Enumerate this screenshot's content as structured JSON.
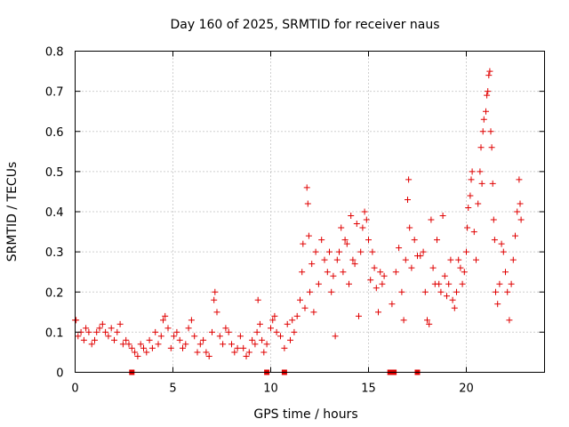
{
  "chart_data": {
    "type": "scatter",
    "title": "Day 160 of 2025, SRMTID for receiver naus",
    "xlabel": "GPS time / hours",
    "ylabel": "SRMTID / TECUs",
    "xlim": [
      0,
      24
    ],
    "ylim": [
      0,
      0.8
    ],
    "grid": true,
    "legend": "none",
    "marker": "plus",
    "color": "#e00000",
    "x_ticks": [
      0,
      5,
      10,
      15,
      20
    ],
    "x_tick_labels": [
      "0",
      "5",
      "10",
      "15",
      "20"
    ],
    "y_ticks": [
      0,
      0.1,
      0.2,
      0.3,
      0.4,
      0.5,
      0.6,
      0.7,
      0.8
    ],
    "y_tick_labels": [
      "0",
      "0.1",
      "0.2",
      "0.3",
      "0.4",
      "0.5",
      "0.6",
      "0.7",
      "0.8"
    ],
    "series": [
      {
        "name": "SRMTID",
        "points": [
          [
            0.0,
            0.13
          ],
          [
            0.05,
            0.13
          ],
          [
            0.15,
            0.09
          ],
          [
            0.3,
            0.1
          ],
          [
            0.45,
            0.08
          ],
          [
            0.55,
            0.11
          ],
          [
            0.7,
            0.1
          ],
          [
            0.85,
            0.07
          ],
          [
            1.0,
            0.08
          ],
          [
            1.1,
            0.1
          ],
          [
            1.25,
            0.11
          ],
          [
            1.4,
            0.12
          ],
          [
            1.55,
            0.1
          ],
          [
            1.7,
            0.09
          ],
          [
            1.85,
            0.11
          ],
          [
            2.0,
            0.08
          ],
          [
            2.15,
            0.1
          ],
          [
            2.3,
            0.12
          ],
          [
            2.45,
            0.07
          ],
          [
            2.6,
            0.08
          ],
          [
            2.75,
            0.07
          ],
          [
            2.9,
            0.06
          ],
          [
            3.05,
            0.05
          ],
          [
            3.2,
            0.04
          ],
          [
            3.35,
            0.07
          ],
          [
            3.5,
            0.06
          ],
          [
            3.65,
            0.05
          ],
          [
            3.8,
            0.08
          ],
          [
            3.95,
            0.06
          ],
          [
            4.1,
            0.1
          ],
          [
            4.25,
            0.07
          ],
          [
            4.4,
            0.09
          ],
          [
            4.5,
            0.13
          ],
          [
            4.6,
            0.14
          ],
          [
            4.75,
            0.11
          ],
          [
            4.9,
            0.06
          ],
          [
            5.05,
            0.09
          ],
          [
            5.2,
            0.1
          ],
          [
            5.35,
            0.08
          ],
          [
            5.5,
            0.06
          ],
          [
            5.65,
            0.07
          ],
          [
            5.8,
            0.11
          ],
          [
            5.95,
            0.13
          ],
          [
            6.1,
            0.09
          ],
          [
            6.25,
            0.05
          ],
          [
            6.4,
            0.07
          ],
          [
            6.55,
            0.08
          ],
          [
            6.7,
            0.05
          ],
          [
            6.85,
            0.04
          ],
          [
            7.0,
            0.1
          ],
          [
            7.1,
            0.18
          ],
          [
            7.15,
            0.2
          ],
          [
            7.25,
            0.15
          ],
          [
            7.4,
            0.09
          ],
          [
            7.55,
            0.07
          ],
          [
            7.7,
            0.11
          ],
          [
            7.85,
            0.1
          ],
          [
            8.0,
            0.07
          ],
          [
            8.15,
            0.05
          ],
          [
            8.3,
            0.06
          ],
          [
            8.45,
            0.09
          ],
          [
            8.6,
            0.06
          ],
          [
            8.75,
            0.04
          ],
          [
            8.9,
            0.05
          ],
          [
            9.05,
            0.08
          ],
          [
            9.2,
            0.07
          ],
          [
            9.3,
            0.1
          ],
          [
            9.35,
            0.18
          ],
          [
            9.45,
            0.12
          ],
          [
            9.55,
            0.08
          ],
          [
            9.65,
            0.05
          ],
          [
            9.8,
            0.07
          ],
          [
            10.0,
            0.11
          ],
          [
            10.1,
            0.13
          ],
          [
            10.2,
            0.14
          ],
          [
            10.3,
            0.1
          ],
          [
            10.5,
            0.09
          ],
          [
            10.7,
            0.06
          ],
          [
            10.85,
            0.12
          ],
          [
            11.0,
            0.08
          ],
          [
            11.1,
            0.13
          ],
          [
            11.2,
            0.1
          ],
          [
            11.35,
            0.14
          ],
          [
            11.5,
            0.18
          ],
          [
            11.6,
            0.25
          ],
          [
            11.65,
            0.32
          ],
          [
            11.75,
            0.16
          ],
          [
            11.85,
            0.46
          ],
          [
            11.9,
            0.42
          ],
          [
            11.95,
            0.34
          ],
          [
            12.0,
            0.2
          ],
          [
            12.1,
            0.27
          ],
          [
            12.2,
            0.15
          ],
          [
            12.3,
            0.3
          ],
          [
            12.45,
            0.22
          ],
          [
            12.6,
            0.33
          ],
          [
            12.75,
            0.28
          ],
          [
            12.9,
            0.25
          ],
          [
            13.0,
            0.3
          ],
          [
            13.1,
            0.2
          ],
          [
            13.2,
            0.24
          ],
          [
            13.3,
            0.09
          ],
          [
            13.4,
            0.28
          ],
          [
            13.5,
            0.3
          ],
          [
            13.6,
            0.36
          ],
          [
            13.7,
            0.25
          ],
          [
            13.8,
            0.33
          ],
          [
            13.9,
            0.32
          ],
          [
            14.0,
            0.22
          ],
          [
            14.1,
            0.39
          ],
          [
            14.2,
            0.28
          ],
          [
            14.3,
            0.27
          ],
          [
            14.4,
            0.37
          ],
          [
            14.5,
            0.14
          ],
          [
            14.6,
            0.3
          ],
          [
            14.7,
            0.36
          ],
          [
            14.8,
            0.4
          ],
          [
            14.9,
            0.38
          ],
          [
            15.0,
            0.33
          ],
          [
            15.1,
            0.23
          ],
          [
            15.2,
            0.3
          ],
          [
            15.3,
            0.26
          ],
          [
            15.4,
            0.21
          ],
          [
            15.5,
            0.15
          ],
          [
            15.6,
            0.25
          ],
          [
            15.7,
            0.22
          ],
          [
            15.8,
            0.24
          ],
          [
            16.2,
            0.17
          ],
          [
            16.4,
            0.25
          ],
          [
            16.55,
            0.31
          ],
          [
            16.7,
            0.2
          ],
          [
            16.8,
            0.13
          ],
          [
            16.9,
            0.28
          ],
          [
            17.0,
            0.43
          ],
          [
            17.05,
            0.48
          ],
          [
            17.1,
            0.36
          ],
          [
            17.2,
            0.26
          ],
          [
            17.35,
            0.33
          ],
          [
            17.5,
            0.29
          ],
          [
            17.65,
            0.29
          ],
          [
            17.8,
            0.3
          ],
          [
            17.9,
            0.2
          ],
          [
            18.0,
            0.13
          ],
          [
            18.1,
            0.12
          ],
          [
            18.2,
            0.38
          ],
          [
            18.3,
            0.26
          ],
          [
            18.4,
            0.22
          ],
          [
            18.5,
            0.33
          ],
          [
            18.6,
            0.22
          ],
          [
            18.7,
            0.2
          ],
          [
            18.8,
            0.39
          ],
          [
            18.9,
            0.24
          ],
          [
            19.0,
            0.19
          ],
          [
            19.1,
            0.22
          ],
          [
            19.2,
            0.28
          ],
          [
            19.3,
            0.18
          ],
          [
            19.4,
            0.16
          ],
          [
            19.5,
            0.2
          ],
          [
            19.6,
            0.28
          ],
          [
            19.7,
            0.26
          ],
          [
            19.8,
            0.22
          ],
          [
            19.9,
            0.25
          ],
          [
            20.0,
            0.3
          ],
          [
            20.05,
            0.36
          ],
          [
            20.1,
            0.41
          ],
          [
            20.2,
            0.44
          ],
          [
            20.25,
            0.48
          ],
          [
            20.3,
            0.5
          ],
          [
            20.4,
            0.35
          ],
          [
            20.5,
            0.28
          ],
          [
            20.6,
            0.42
          ],
          [
            20.7,
            0.5
          ],
          [
            20.75,
            0.56
          ],
          [
            20.8,
            0.47
          ],
          [
            20.85,
            0.6
          ],
          [
            20.9,
            0.63
          ],
          [
            21.0,
            0.65
          ],
          [
            21.05,
            0.69
          ],
          [
            21.1,
            0.7
          ],
          [
            21.15,
            0.74
          ],
          [
            21.2,
            0.75
          ],
          [
            21.25,
            0.6
          ],
          [
            21.3,
            0.56
          ],
          [
            21.35,
            0.47
          ],
          [
            21.4,
            0.38
          ],
          [
            21.45,
            0.33
          ],
          [
            21.5,
            0.2
          ],
          [
            21.6,
            0.17
          ],
          [
            21.7,
            0.22
          ],
          [
            21.8,
            0.32
          ],
          [
            21.9,
            0.3
          ],
          [
            22.0,
            0.25
          ],
          [
            22.1,
            0.2
          ],
          [
            22.2,
            0.13
          ],
          [
            22.3,
            0.22
          ],
          [
            22.4,
            0.28
          ],
          [
            22.5,
            0.34
          ],
          [
            22.6,
            0.4
          ],
          [
            22.7,
            0.48
          ],
          [
            22.75,
            0.42
          ],
          [
            22.8,
            0.38
          ]
        ]
      }
    ],
    "gap_markers": [
      2.9,
      9.8,
      10.7,
      16.1,
      16.3,
      17.5
    ]
  }
}
